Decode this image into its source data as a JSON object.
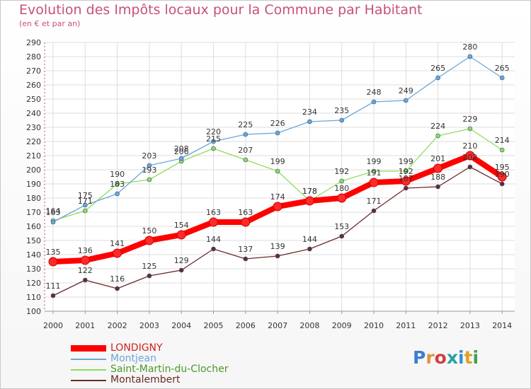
{
  "title": "Evolution des Impôts locaux pour la Commune par Habitant",
  "subtitle": "(en € et par an)",
  "logo": {
    "text": "Proxiti",
    "colors": [
      "#3b7fd0",
      "#e8903a",
      "#d04040",
      "#2aa0a0",
      "#2f8fd8",
      "#e0a020",
      "#40a050"
    ]
  },
  "chart_data": {
    "type": "line",
    "title": "Evolution des Impôts locaux pour la Commune par Habitant",
    "subtitle": "(en € et par an)",
    "x": [
      "2000",
      "2001",
      "2002",
      "2003",
      "2004",
      "2005",
      "2006",
      "2007",
      "2008",
      "2009",
      "2010",
      "2011",
      "2012",
      "2013",
      "2014"
    ],
    "yticks": [
      "100",
      "110",
      "120",
      "130",
      "140",
      "150",
      "160",
      "170",
      "180",
      "190",
      "200",
      "210",
      "220",
      "230",
      "240",
      "250",
      "260",
      "270",
      "280",
      "290"
    ],
    "ylim": [
      100,
      290
    ],
    "grid": true,
    "legend_position": "bottom-left",
    "series": [
      {
        "name": "LONDIGNY",
        "color": "#ff0000",
        "values": [
          135,
          136,
          141,
          150,
          154,
          163,
          163,
          174,
          178,
          180,
          191,
          192,
          201,
          210,
          195
        ]
      },
      {
        "name": "Montjean",
        "color": "#6aa7d8",
        "values": [
          163,
          175,
          183,
          203,
          208,
          220,
          225,
          226,
          234,
          235,
          248,
          249,
          265,
          280,
          265
        ]
      },
      {
        "name": "Saint-Martin-du-Clocher",
        "color": "#8fdc5a",
        "values": [
          164,
          171,
          190,
          193,
          206,
          215,
          207,
          199,
          178,
          192,
          199,
          199,
          224,
          229,
          214
        ]
      },
      {
        "name": "Montalembert",
        "color": "#6b2a2a",
        "values": [
          111,
          122,
          116,
          125,
          129,
          144,
          137,
          139,
          144,
          153,
          171,
          187,
          188,
          202,
          190
        ]
      }
    ]
  }
}
